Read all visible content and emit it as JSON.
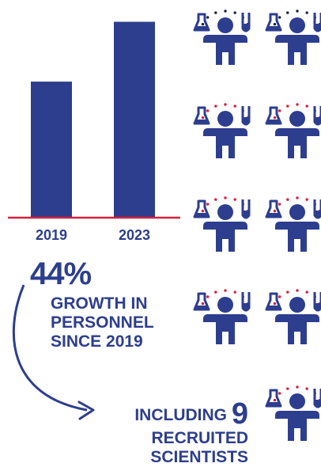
{
  "colors": {
    "bar": "#2d3e8e",
    "axis": "#d4213d",
    "text": "#2d3e8e",
    "dot_black": "#1f2340",
    "dot_red": "#d4213d"
  },
  "chart_data": {
    "type": "bar",
    "categories": [
      "2019",
      "2023"
    ],
    "values": [
      100,
      144
    ],
    "ylim": [
      0,
      160
    ],
    "title": "",
    "xlabel": "",
    "ylabel": "",
    "grid": false
  },
  "stats": {
    "growth_value": "44%",
    "growth_lines": [
      "GROWTH IN",
      "PERSONNEL",
      "SINCE 2019"
    ],
    "recruit_prefix": "INCLUDING",
    "recruit_number": "9",
    "recruit_lines": [
      "RECRUITED",
      "SCIENTISTS"
    ]
  },
  "pictogram": {
    "icon": "scientist-with-flasks-icon",
    "rows": [
      {
        "count": 2,
        "dots": [
          "dot_black",
          "dot_black"
        ]
      },
      {
        "count": 2,
        "dots": [
          "dot_red",
          "dot_red"
        ]
      },
      {
        "count": 2,
        "dots": [
          "dot_red",
          "dot_red"
        ]
      },
      {
        "count": 2,
        "dots": [
          "dot_red",
          "dot_red"
        ]
      },
      {
        "count": 1,
        "dots": [
          "dot_red"
        ]
      }
    ]
  }
}
